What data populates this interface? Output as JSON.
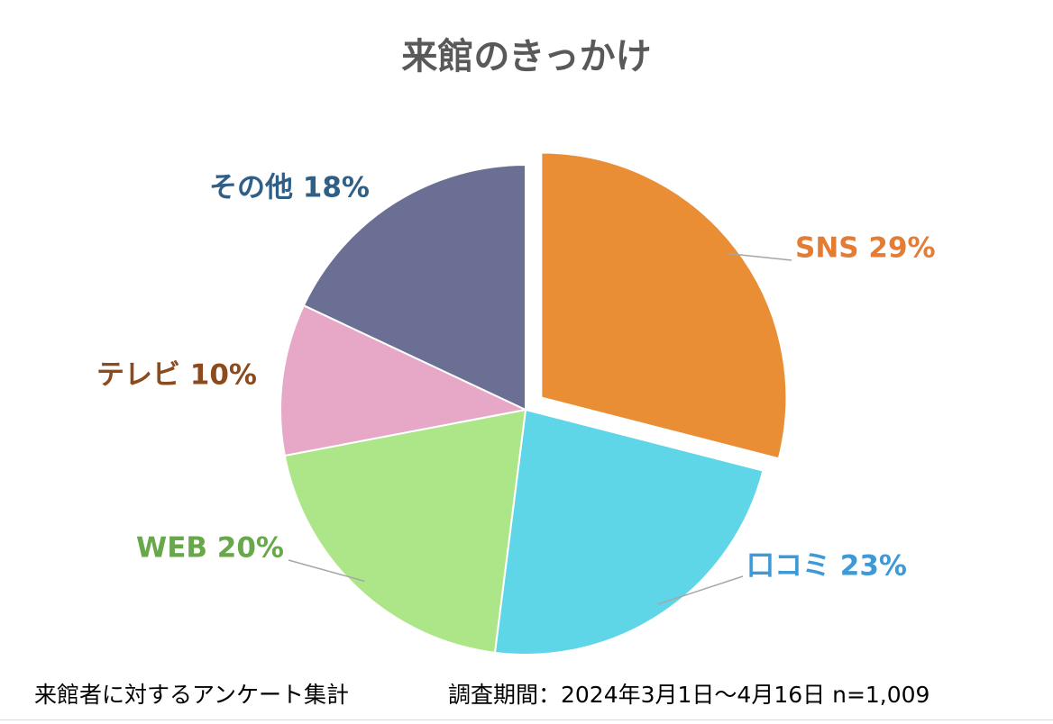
{
  "chart_data": {
    "type": "pie",
    "title": "来館のきっかけ",
    "slices": [
      {
        "name": "SNS",
        "value": 29,
        "label": "SNS 29%",
        "color": "#ea8e35",
        "label_color": "#e47c34",
        "exploded": true
      },
      {
        "name": "口コミ",
        "value": 23,
        "label": "口コミ 23%",
        "color": "#5ed6e8",
        "label_color": "#3d9ad6",
        "exploded": false
      },
      {
        "name": "WEB",
        "value": 20,
        "label": "WEB 20%",
        "color": "#ade688",
        "label_color": "#67a84a",
        "exploded": false
      },
      {
        "name": "テレビ",
        "value": 10,
        "label": "テレビ 10%",
        "color": "#e7a8c7",
        "label_color": "#8c4a1f",
        "exploded": false
      },
      {
        "name": "その他",
        "value": 18,
        "label": "その他 18%",
        "color": "#6b6f93",
        "label_color": "#2f5f86",
        "exploded": false
      }
    ],
    "start": "12 o'clock",
    "direction": "clockwise"
  },
  "footnote": {
    "source": "来館者に対するアンケート集計",
    "period": "調査期間：2024年3月1日～4月16日 n=1,009"
  }
}
